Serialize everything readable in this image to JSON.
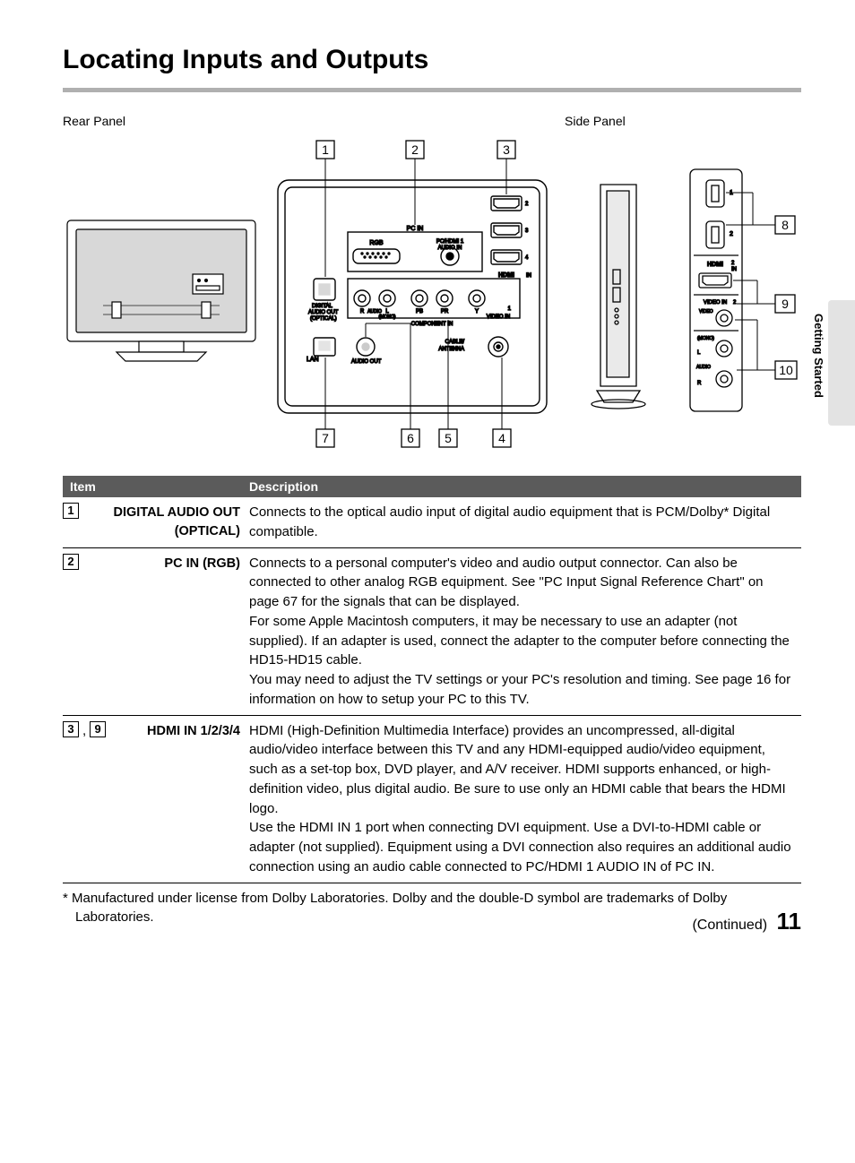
{
  "title": "Locating Inputs and Outputs",
  "section_tab": "Getting Started",
  "panel_labels": {
    "rear": "Rear Panel",
    "side": "Side Panel"
  },
  "callouts": {
    "top": [
      "1",
      "2",
      "3"
    ],
    "bottom": [
      "7",
      "6",
      "5",
      "4"
    ],
    "right": [
      "8",
      "9",
      "10"
    ]
  },
  "diagram_labels": {
    "pc_in": "PC IN",
    "rgb": "RGB",
    "pc_hdmi_audio": "PC/HDMI 1\nAUDIO IN",
    "digital_audio_out": "DIGITAL\nAUDIO OUT\n(OPTICAL)",
    "audio_r": "R",
    "audio_l": "L",
    "audio": "AUDIO",
    "mono": "(MONO)",
    "pb": "PB",
    "pr": "PR",
    "y": "Y",
    "component_in": "COMPONENT IN",
    "video_in": "VIDEO IN",
    "one": "1",
    "lan": "LAN",
    "audio_out": "AUDIO OUT",
    "cable_antenna": "CABLE/\nANTENNA",
    "hdmi_in": "HDMI IN",
    "side_hdmi": "HDMI",
    "side_in": "IN",
    "side_2": "2",
    "side_video_in": "VIDEO IN",
    "side_video": "VIDEO",
    "side_audio": "AUDIO",
    "side_mono": "(MONO)",
    "side_l": "L",
    "side_r": "R",
    "side_port1": "1",
    "side_port2": "2",
    "side_port_hdmi3": "3",
    "side_port_hdmi4": "4"
  },
  "table": {
    "headers": {
      "item": "Item",
      "description": "Description"
    },
    "rows": [
      {
        "nums": [
          "1"
        ],
        "label": "DIGITAL AUDIO OUT (OPTICAL)",
        "description": "Connects to the optical audio input of digital audio equipment that is PCM/Dolby* Digital compatible."
      },
      {
        "nums": [
          "2"
        ],
        "label": "PC IN (RGB)",
        "description": "Connects to a personal computer's video and audio output connector. Can also be connected to other analog RGB equipment. See \"PC Input Signal Reference Chart\" on page 67 for the signals that can be displayed.\nFor some Apple Macintosh computers, it may be necessary to use an adapter (not supplied). If an adapter is used, connect the adapter to the computer before connecting the HD15-HD15 cable.\nYou may need to adjust the TV settings or your PC's resolution and timing. See page 16 for information on how to setup your PC to this TV."
      },
      {
        "nums": [
          "3",
          "9"
        ],
        "label": "HDMI IN 1/2/3/4",
        "description": "HDMI (High-Definition Multimedia Interface) provides an uncompressed, all-digital audio/video interface between this TV and any HDMI-equipped audio/video equipment, such as a set-top box, DVD player, and A/V receiver. HDMI supports enhanced, or high-definition video, plus digital audio. Be sure to use only an HDMI cable that bears the HDMI logo.\nUse the HDMI IN 1 port when connecting DVI equipment. Use a DVI-to-HDMI cable or adapter (not supplied). Equipment using a DVI connection also requires an additional audio connection using an audio cable connected to PC/HDMI 1 AUDIO IN of PC IN."
      }
    ]
  },
  "footnote": "*  Manufactured under license from Dolby Laboratories. Dolby and the double-D symbol are trademarks of Dolby Laboratories.",
  "footer": {
    "continued": "(Continued)",
    "page_number": "11"
  },
  "colors": {
    "divider": "#b0b0b0",
    "table_header_bg": "#5b5b5b",
    "side_tab_bg": "#e3e3e3",
    "line": "#000000",
    "panel_fill": "#ffffff",
    "shade": "#d0d0d0"
  }
}
